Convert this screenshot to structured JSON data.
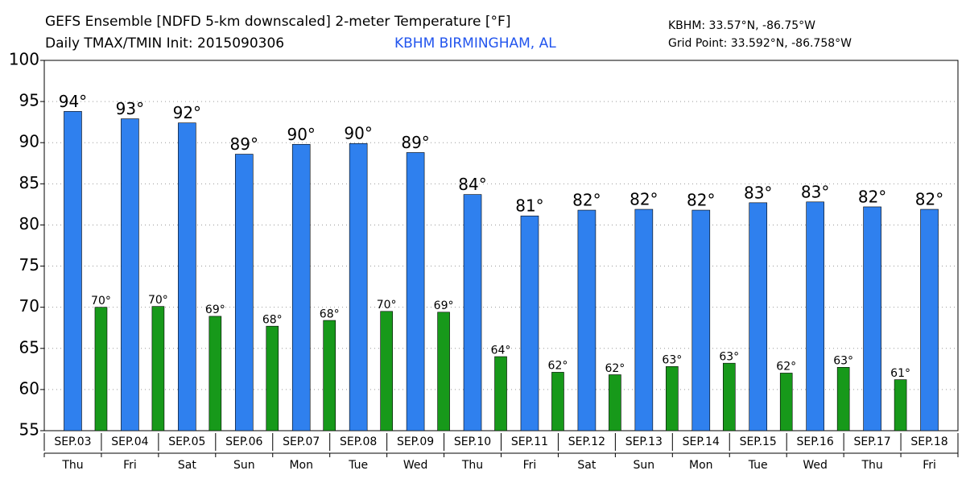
{
  "chart_data": {
    "type": "bar",
    "title": "GEFS Ensemble [NDFD 5-km downscaled] 2-meter Temperature [°F]",
    "subtitle": "Daily TMAX/TMIN Init: 2015090306",
    "location": "KBHM BIRMINGHAM, AL",
    "station_coords": "KBHM: 33.57°N, -86.75°W",
    "grid_point": "Grid Point: 33.592°N, -86.758°W",
    "categories": [
      "SEP.03",
      "SEP.04",
      "SEP.05",
      "SEP.06",
      "SEP.07",
      "SEP.08",
      "SEP.09",
      "SEP.10",
      "SEP.11",
      "SEP.12",
      "SEP.13",
      "SEP.14",
      "SEP.15",
      "SEP.16",
      "SEP.17",
      "SEP.18"
    ],
    "weekdays": [
      "Thu",
      "Fri",
      "Sat",
      "Sun",
      "Mon",
      "Tue",
      "Wed",
      "Thu",
      "Fri",
      "Sat",
      "Sun",
      "Mon",
      "Tue",
      "Wed",
      "Thu",
      "Fri"
    ],
    "series": [
      {
        "color": "#2f80ee",
        "values": [
          93.8,
          92.9,
          92.4,
          88.6,
          89.8,
          89.9,
          88.8,
          83.7,
          81.1,
          81.8,
          81.9,
          81.8,
          82.7,
          82.8,
          82.2,
          81.9
        ],
        "value_labels": [
          "94°",
          "93°",
          "92°",
          "89°",
          "90°",
          "90°",
          "89°",
          "84°",
          "81°",
          "82°",
          "82°",
          "82°",
          "83°",
          "83°",
          "82°",
          "82°"
        ]
      },
      {
        "color": "#17991a",
        "values": [
          70.0,
          70.1,
          68.9,
          67.7,
          68.4,
          69.5,
          69.4,
          64.0,
          62.1,
          61.8,
          62.8,
          63.2,
          62.0,
          62.7,
          61.2,
          null
        ],
        "value_labels": [
          "70°",
          "70°",
          "69°",
          "68°",
          "68°",
          "70°",
          "69°",
          "64°",
          "62°",
          "62°",
          "63°",
          "63°",
          "62°",
          "63°",
          "61°",
          null
        ]
      }
    ],
    "ylim": [
      55,
      100
    ],
    "yticks": [
      55,
      60,
      65,
      70,
      75,
      80,
      85,
      90,
      95,
      100
    ],
    "grid": true
  }
}
